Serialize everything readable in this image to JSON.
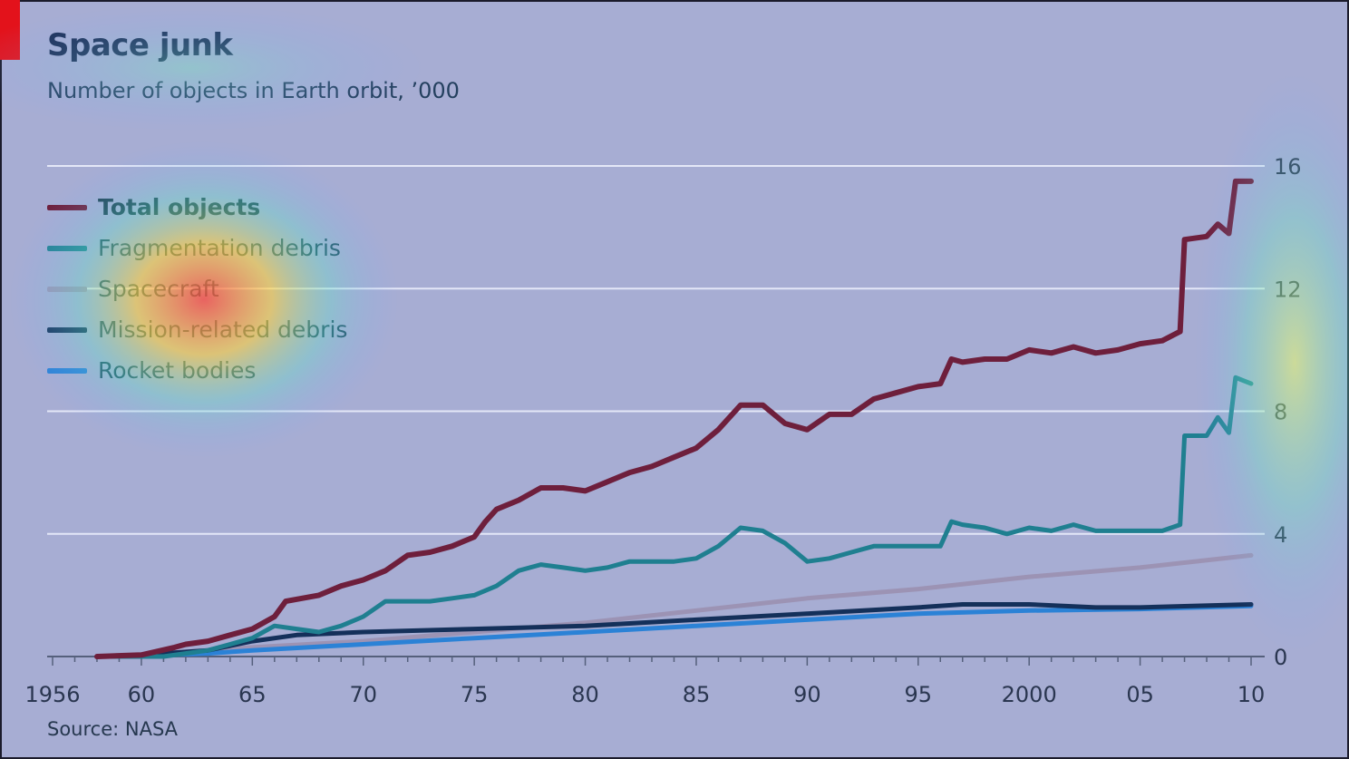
{
  "chart_data": {
    "type": "line",
    "title": "Space junk",
    "subtitle": "Number of objects in Earth orbit, ’000",
    "source": "Source: NASA",
    "xlabel": "",
    "ylabel": "",
    "xlim": [
      1956,
      2010
    ],
    "ylim": [
      0,
      16
    ],
    "y_ticks": [
      "0",
      "4",
      "8",
      "12",
      "16"
    ],
    "x_ticks": [
      "1956",
      "60",
      "65",
      "70",
      "75",
      "80",
      "85",
      "90",
      "95",
      "2000",
      "05",
      "10"
    ],
    "grid": true,
    "legend_position": "top-left",
    "series": [
      {
        "name": "Total objects",
        "color": "#6e1f3c",
        "bold": true,
        "x": [
          1958,
          1960,
          1961.5,
          1962,
          1963,
          1964,
          1965,
          1966,
          1966.5,
          1968,
          1969,
          1970,
          1971,
          1972,
          1973,
          1974,
          1975,
          1975.5,
          1976,
          1977,
          1978,
          1979,
          1980,
          1981,
          1982,
          1983,
          1984,
          1985,
          1986,
          1987,
          1988,
          1989,
          1990,
          1991,
          1992,
          1993,
          1994,
          1995,
          1996,
          1996.5,
          1997,
          1998,
          1999,
          2000,
          2001,
          2002,
          2003,
          2004,
          2005,
          2006,
          2006.8,
          2007,
          2008,
          2008.5,
          2009,
          2009.3,
          2010
        ],
        "y": [
          0,
          0.05,
          0.3,
          0.4,
          0.5,
          0.7,
          0.9,
          1.3,
          1.8,
          2.0,
          2.3,
          2.5,
          2.8,
          3.3,
          3.4,
          3.6,
          3.9,
          4.4,
          4.8,
          5.1,
          5.5,
          5.5,
          5.4,
          5.7,
          6.0,
          6.2,
          6.5,
          6.8,
          7.4,
          8.2,
          8.2,
          7.6,
          7.4,
          7.9,
          7.9,
          8.4,
          8.6,
          8.8,
          8.9,
          9.7,
          9.6,
          9.7,
          9.7,
          10.0,
          9.9,
          10.1,
          9.9,
          10.0,
          10.2,
          10.3,
          10.6,
          13.6,
          13.7,
          14.1,
          13.8,
          15.5,
          15.5
        ]
      },
      {
        "name": "Fragmentation debris",
        "color": "#1f7f90",
        "x": [
          1958,
          1961,
          1962,
          1963,
          1964,
          1965,
          1966,
          1967,
          1968,
          1969,
          1970,
          1971,
          1972,
          1973,
          1974,
          1975,
          1976,
          1977,
          1978,
          1979,
          1980,
          1981,
          1982,
          1983,
          1984,
          1985,
          1986,
          1987,
          1988,
          1989,
          1990,
          1991,
          1992,
          1993,
          1994,
          1995,
          1996,
          1996.5,
          1997,
          1998,
          1999,
          2000,
          2001,
          2002,
          2003,
          2004,
          2005,
          2006,
          2006.8,
          2007,
          2008,
          2008.5,
          2009,
          2009.3,
          2010
        ],
        "y": [
          0,
          0,
          0.1,
          0.2,
          0.4,
          0.6,
          1.0,
          0.9,
          0.8,
          1.0,
          1.3,
          1.8,
          1.8,
          1.8,
          1.9,
          2.0,
          2.3,
          2.8,
          3.0,
          2.9,
          2.8,
          2.9,
          3.1,
          3.1,
          3.1,
          3.2,
          3.6,
          4.2,
          4.1,
          3.7,
          3.1,
          3.2,
          3.4,
          3.6,
          3.6,
          3.6,
          3.6,
          4.4,
          4.3,
          4.2,
          4.0,
          4.2,
          4.1,
          4.3,
          4.1,
          4.1,
          4.1,
          4.1,
          4.3,
          7.2,
          7.2,
          7.8,
          7.3,
          9.1,
          8.9
        ]
      },
      {
        "name": "Spacecraft",
        "color": "#9c93b4",
        "x": [
          1958,
          1960,
          1965,
          1970,
          1975,
          1980,
          1985,
          1990,
          1995,
          2000,
          2005,
          2010
        ],
        "y": [
          0,
          0.05,
          0.3,
          0.5,
          0.8,
          1.1,
          1.5,
          1.9,
          2.2,
          2.6,
          2.9,
          3.3
        ]
      },
      {
        "name": "Mission-related debris",
        "color": "#14305a",
        "x": [
          1958,
          1960,
          1963,
          1965,
          1967,
          1970,
          1975,
          1980,
          1985,
          1990,
          1995,
          1997,
          2000,
          2003,
          2005,
          2010
        ],
        "y": [
          0,
          0.05,
          0.2,
          0.5,
          0.7,
          0.8,
          0.9,
          1.0,
          1.2,
          1.4,
          1.6,
          1.7,
          1.7,
          1.6,
          1.6,
          1.7
        ]
      },
      {
        "name": "Rocket bodies",
        "color": "#2b82d6",
        "x": [
          1958,
          1960,
          1963,
          1965,
          1970,
          1975,
          1980,
          1985,
          1990,
          1995,
          2000,
          2005,
          2010
        ],
        "y": [
          0,
          0.02,
          0.1,
          0.2,
          0.4,
          0.6,
          0.8,
          1.0,
          1.2,
          1.4,
          1.5,
          1.55,
          1.65
        ]
      }
    ]
  }
}
